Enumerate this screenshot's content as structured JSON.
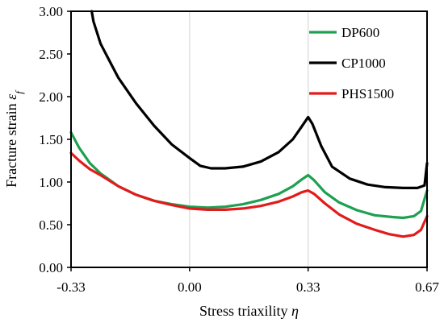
{
  "chart_data": {
    "type": "line",
    "xlabel": "Stress triaxility",
    "xlabel_symbol": "η",
    "ylabel": "Fracture strain",
    "ylabel_symbol": "ε",
    "ylabel_subscript": "f",
    "xlim": [
      -0.333,
      0.667
    ],
    "ylim": [
      0.0,
      3.0
    ],
    "x_ticks": [
      {
        "value": -0.333,
        "label": "-0.33"
      },
      {
        "value": 0.0,
        "label": "0.00"
      },
      {
        "value": 0.333,
        "label": "0.33"
      },
      {
        "value": 0.667,
        "label": "0.67"
      }
    ],
    "y_ticks": [
      {
        "value": 0.0,
        "label": "0.00"
      },
      {
        "value": 0.5,
        "label": "0.50"
      },
      {
        "value": 1.0,
        "label": "1.00"
      },
      {
        "value": 1.5,
        "label": "1.50"
      },
      {
        "value": 2.0,
        "label": "2.00"
      },
      {
        "value": 2.5,
        "label": "2.50"
      },
      {
        "value": 3.0,
        "label": "3.00"
      }
    ],
    "vertical_gridlines": [
      0.0,
      0.333
    ],
    "legend_position": "top-right",
    "series": [
      {
        "name": "DP600",
        "color": "#1ea050",
        "points": [
          [
            -0.333,
            1.58
          ],
          [
            -0.31,
            1.4
          ],
          [
            -0.28,
            1.22
          ],
          [
            -0.25,
            1.1
          ],
          [
            -0.2,
            0.95
          ],
          [
            -0.15,
            0.85
          ],
          [
            -0.1,
            0.78
          ],
          [
            -0.05,
            0.74
          ],
          [
            0.0,
            0.71
          ],
          [
            0.05,
            0.7
          ],
          [
            0.1,
            0.71
          ],
          [
            0.15,
            0.74
          ],
          [
            0.2,
            0.79
          ],
          [
            0.25,
            0.86
          ],
          [
            0.29,
            0.95
          ],
          [
            0.315,
            1.03
          ],
          [
            0.333,
            1.08
          ],
          [
            0.35,
            1.02
          ],
          [
            0.38,
            0.88
          ],
          [
            0.42,
            0.76
          ],
          [
            0.47,
            0.67
          ],
          [
            0.52,
            0.61
          ],
          [
            0.57,
            0.59
          ],
          [
            0.6,
            0.58
          ],
          [
            0.63,
            0.6
          ],
          [
            0.65,
            0.66
          ],
          [
            0.667,
            0.9
          ]
        ]
      },
      {
        "name": "CP1000",
        "color": "#000000",
        "points": [
          [
            -0.275,
            3.0
          ],
          [
            -0.27,
            2.88
          ],
          [
            -0.25,
            2.62
          ],
          [
            -0.22,
            2.38
          ],
          [
            -0.2,
            2.22
          ],
          [
            -0.15,
            1.92
          ],
          [
            -0.1,
            1.66
          ],
          [
            -0.05,
            1.44
          ],
          [
            0.0,
            1.28
          ],
          [
            0.03,
            1.19
          ],
          [
            0.06,
            1.16
          ],
          [
            0.1,
            1.16
          ],
          [
            0.15,
            1.18
          ],
          [
            0.2,
            1.24
          ],
          [
            0.25,
            1.35
          ],
          [
            0.29,
            1.5
          ],
          [
            0.315,
            1.65
          ],
          [
            0.333,
            1.76
          ],
          [
            0.345,
            1.68
          ],
          [
            0.37,
            1.42
          ],
          [
            0.4,
            1.18
          ],
          [
            0.45,
            1.04
          ],
          [
            0.5,
            0.97
          ],
          [
            0.55,
            0.94
          ],
          [
            0.6,
            0.93
          ],
          [
            0.64,
            0.93
          ],
          [
            0.66,
            0.96
          ],
          [
            0.667,
            1.22
          ]
        ]
      },
      {
        "name": "PHS1500",
        "color": "#e21b1b",
        "points": [
          [
            -0.333,
            1.34
          ],
          [
            -0.31,
            1.25
          ],
          [
            -0.28,
            1.15
          ],
          [
            -0.25,
            1.08
          ],
          [
            -0.2,
            0.95
          ],
          [
            -0.15,
            0.85
          ],
          [
            -0.1,
            0.78
          ],
          [
            -0.05,
            0.73
          ],
          [
            0.0,
            0.69
          ],
          [
            0.05,
            0.675
          ],
          [
            0.1,
            0.675
          ],
          [
            0.15,
            0.69
          ],
          [
            0.2,
            0.72
          ],
          [
            0.25,
            0.77
          ],
          [
            0.29,
            0.83
          ],
          [
            0.315,
            0.88
          ],
          [
            0.333,
            0.9
          ],
          [
            0.35,
            0.86
          ],
          [
            0.38,
            0.75
          ],
          [
            0.42,
            0.62
          ],
          [
            0.47,
            0.51
          ],
          [
            0.52,
            0.44
          ],
          [
            0.56,
            0.39
          ],
          [
            0.6,
            0.36
          ],
          [
            0.63,
            0.38
          ],
          [
            0.65,
            0.44
          ],
          [
            0.667,
            0.6
          ]
        ]
      }
    ]
  }
}
